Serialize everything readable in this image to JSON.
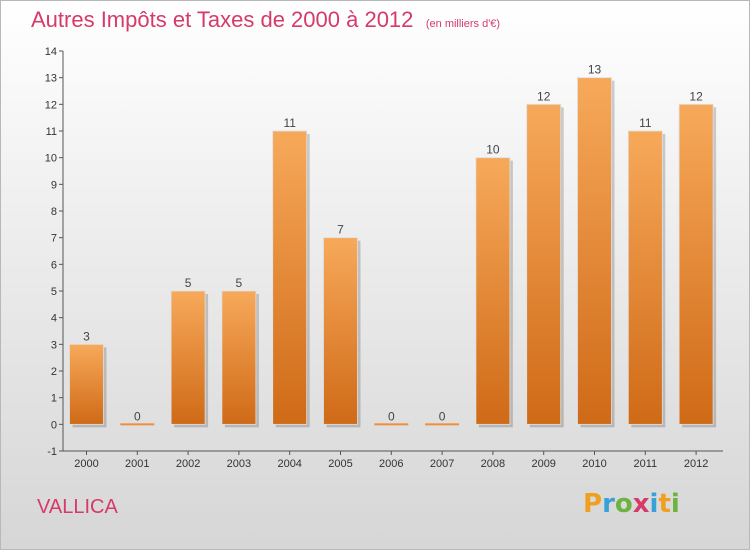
{
  "header": {
    "title": "Autres Impôts et Taxes de 2000 à 2012",
    "subtitle": "(en milliers d'€)"
  },
  "location": "VALLICA",
  "brand": {
    "letters": [
      "P",
      "r",
      "o",
      "x",
      "i",
      "t",
      "i"
    ],
    "colors": [
      "#f0a020",
      "#3aa0d8",
      "#6cb33f",
      "#d63a6a",
      "#3aa0d8",
      "#f0a020",
      "#6cb33f"
    ]
  },
  "chart_data": {
    "type": "bar",
    "categories": [
      "2000",
      "2001",
      "2002",
      "2003",
      "2004",
      "2005",
      "2006",
      "2007",
      "2008",
      "2009",
      "2010",
      "2011",
      "2012"
    ],
    "values": [
      3,
      0,
      5,
      5,
      11,
      7,
      0,
      0,
      10,
      12,
      13,
      11,
      12
    ],
    "ylim": [
      -1,
      14
    ],
    "yticks": [
      -1,
      0,
      1,
      2,
      3,
      4,
      5,
      6,
      7,
      8,
      9,
      10,
      11,
      12,
      13,
      14
    ],
    "bar_color": "#ef8f3c",
    "grid": false,
    "legend": "none"
  }
}
